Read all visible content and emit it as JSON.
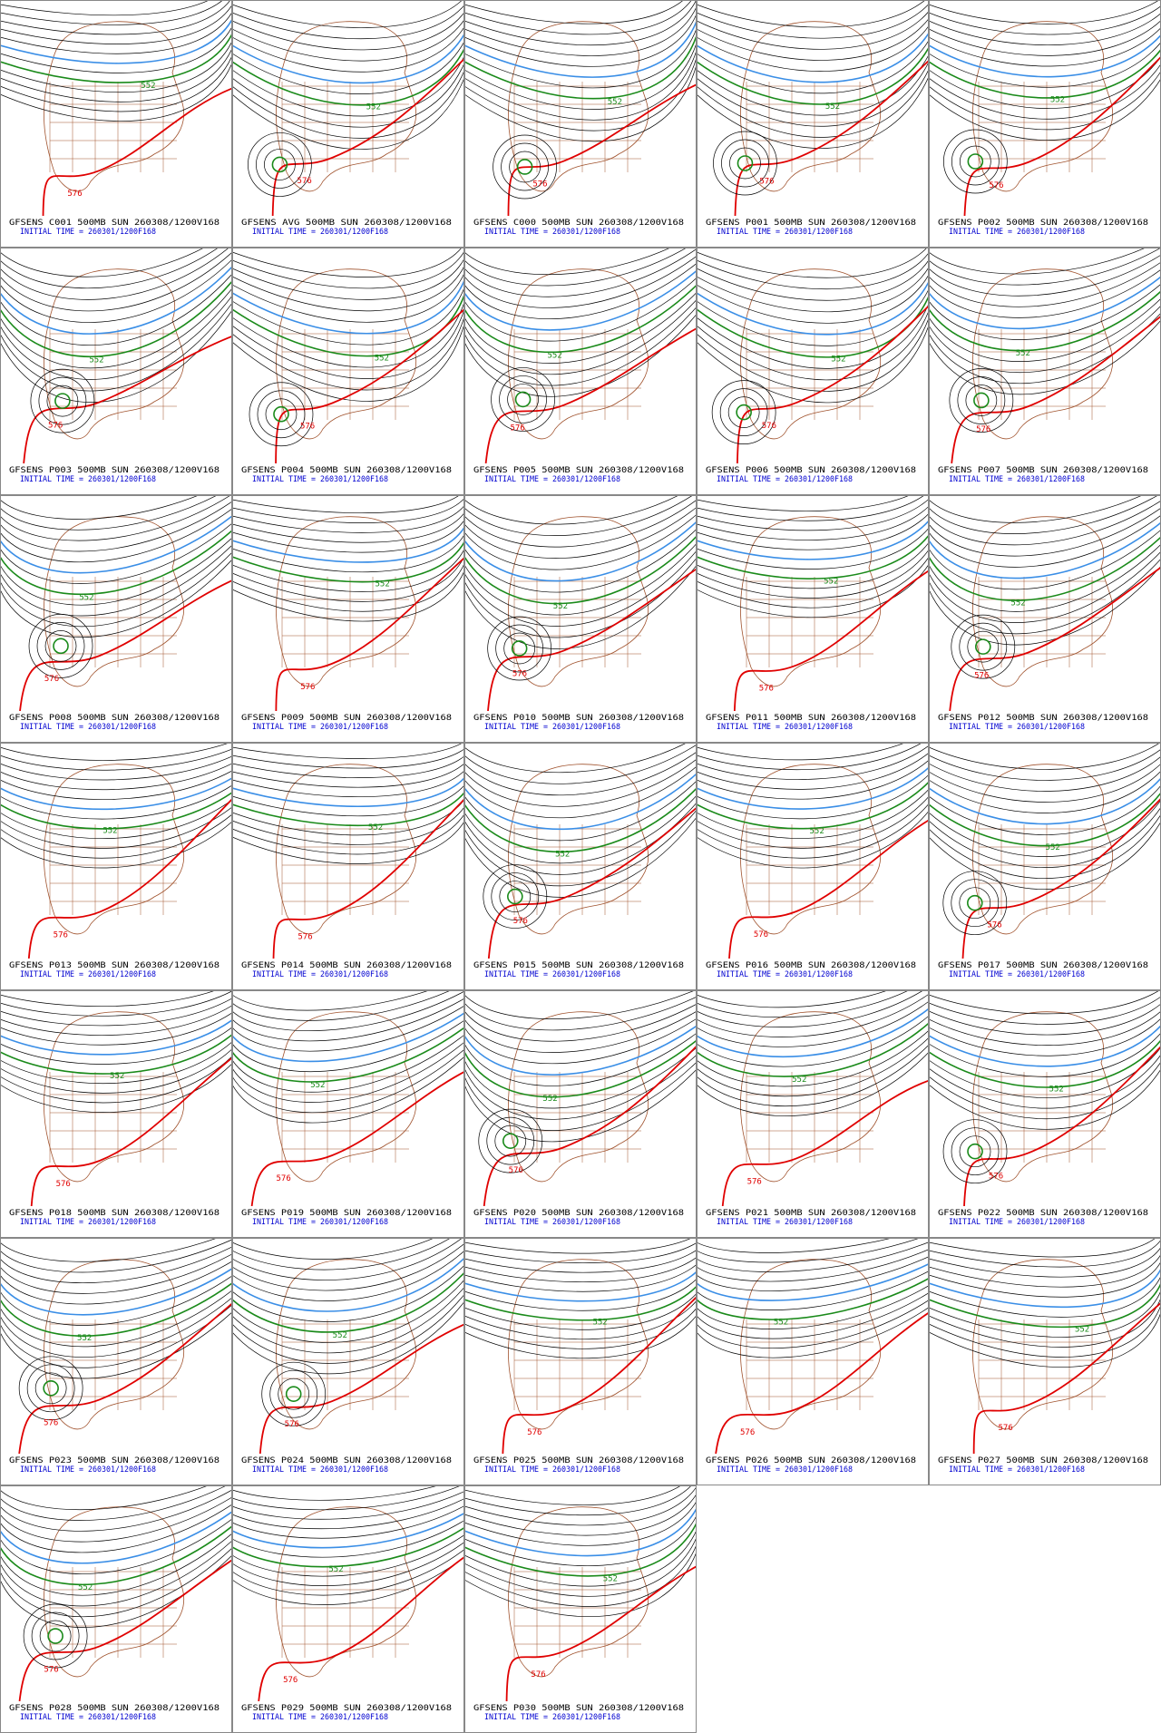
{
  "panels": [
    {
      "title": "GFSENS C001 500MB SUN 260308/1200V168",
      "init": "INITIAL TIME = 260301/1200F168",
      "labels": [
        "552",
        "576"
      ]
    },
    {
      "title": "GFSENS AVG 500MB SUN 260308/1200V168",
      "init": "INITIAL TIME = 260301/1200F168",
      "labels": [
        "552",
        "576"
      ]
    },
    {
      "title": "GFSENS C000 500MB SUN 260308/1200V168",
      "init": "INITIAL TIME = 260301/1200F168",
      "labels": [
        "552",
        "576"
      ]
    },
    {
      "title": "GFSENS P001 500MB SUN 260308/1200V168",
      "init": "INITIAL TIME = 260301/1200F168",
      "labels": [
        "552",
        "576"
      ]
    },
    {
      "title": "GFSENS P002 500MB SUN 260308/1200V168",
      "init": "INITIAL TIME = 260301/1200F168",
      "labels": [
        "552",
        "576"
      ]
    },
    {
      "title": "GFSENS P003 500MB SUN 260308/1200V168",
      "init": "INITIAL TIME = 260301/1200F168",
      "labels": [
        "552",
        "576"
      ]
    },
    {
      "title": "GFSENS P004 500MB SUN 260308/1200V168",
      "init": "INITIAL TIME = 260301/1200F168",
      "labels": [
        "552",
        "576"
      ]
    },
    {
      "title": "GFSENS P005 500MB SUN 260308/1200V168",
      "init": "INITIAL TIME = 260301/1200F168",
      "labels": [
        "552",
        "576"
      ]
    },
    {
      "title": "GFSENS P006 500MB SUN 260308/1200V168",
      "init": "INITIAL TIME = 260301/1200F168",
      "labels": [
        "552",
        "576"
      ]
    },
    {
      "title": "GFSENS P007 500MB SUN 260308/1200V168",
      "init": "INITIAL TIME = 260301/1200F168",
      "labels": [
        "552",
        "576"
      ]
    },
    {
      "title": "GFSENS P008 500MB SUN 260308/1200V168",
      "init": "INITIAL TIME = 260301/1200F168",
      "labels": [
        "552",
        "576"
      ]
    },
    {
      "title": "GFSENS P009 500MB SUN 260308/1200V168",
      "init": "INITIAL TIME = 260301/1200F168",
      "labels": [
        "552",
        "576"
      ]
    },
    {
      "title": "GFSENS P010 500MB SUN 260308/1200V168",
      "init": "INITIAL TIME = 260301/1200F168",
      "labels": [
        "552",
        "576"
      ]
    },
    {
      "title": "GFSENS P011 500MB SUN 260308/1200V168",
      "init": "INITIAL TIME = 260301/1200F168",
      "labels": [
        "552",
        "576"
      ]
    },
    {
      "title": "GFSENS P012 500MB SUN 260308/1200V168",
      "init": "INITIAL TIME = 260301/1200F168",
      "labels": [
        "552",
        "576"
      ]
    },
    {
      "title": "GFSENS P013 500MB SUN 260308/1200V168",
      "init": "INITIAL TIME = 260301/1200F168",
      "labels": [
        "552",
        "576"
      ]
    },
    {
      "title": "GFSENS P014 500MB SUN 260308/1200V168",
      "init": "INITIAL TIME = 260301/1200F168",
      "labels": [
        "552",
        "576"
      ]
    },
    {
      "title": "GFSENS P015 500MB SUN 260308/1200V168",
      "init": "INITIAL TIME = 260301/1200F168",
      "labels": [
        "552",
        "576"
      ]
    },
    {
      "title": "GFSENS P016 500MB SUN 260308/1200V168",
      "init": "INITIAL TIME = 260301/1200F168",
      "labels": [
        "552",
        "576"
      ]
    },
    {
      "title": "GFSENS P017 500MB SUN 260308/1200V168",
      "init": "INITIAL TIME = 260301/1200F168",
      "labels": [
        "552",
        "576"
      ]
    },
    {
      "title": "GFSENS P018 500MB SUN 260308/1200V168",
      "init": "INITIAL TIME = 260301/1200F168",
      "labels": [
        "552",
        "576"
      ]
    },
    {
      "title": "GFSENS P019 500MB SUN 260308/1200V168",
      "init": "INITIAL TIME = 260301/1200F168",
      "labels": [
        "552",
        "576"
      ]
    },
    {
      "title": "GFSENS P020 500MB SUN 260308/1200V168",
      "init": "INITIAL TIME = 260301/1200F168",
      "labels": [
        "552",
        "576"
      ]
    },
    {
      "title": "GFSENS P021 500MB SUN 260308/1200V168",
      "init": "INITIAL TIME = 260301/1200F168",
      "labels": [
        "552",
        "576"
      ]
    },
    {
      "title": "GFSENS P022 500MB SUN 260308/1200V168",
      "init": "INITIAL TIME = 260301/1200F168",
      "labels": [
        "552",
        "576"
      ]
    },
    {
      "title": "GFSENS P023 500MB SUN 260308/1200V168",
      "init": "INITIAL TIME = 260301/1200F168",
      "labels": [
        "552",
        "576"
      ]
    },
    {
      "title": "GFSENS P024 500MB SUN 260308/1200V168",
      "init": "INITIAL TIME = 260301/1200F168",
      "labels": [
        "552",
        "576"
      ]
    },
    {
      "title": "GFSENS P025 500MB SUN 260308/1200V168",
      "init": "INITIAL TIME = 260301/1200F168",
      "labels": [
        "552",
        "576"
      ]
    },
    {
      "title": "GFSENS P026 500MB SUN 260308/1200V168",
      "init": "INITIAL TIME = 260301/1200F168",
      "labels": [
        "552",
        "576"
      ]
    },
    {
      "title": "GFSENS P027 500MB SUN 260308/1200V168",
      "init": "INITIAL TIME = 260301/1200F168",
      "labels": [
        "552",
        "576"
      ]
    },
    {
      "title": "GFSENS P028 500MB SUN 260308/1200V168",
      "init": "INITIAL TIME = 260301/1200F168",
      "labels": [
        "552",
        "576"
      ]
    },
    {
      "title": "GFSENS P029 500MB SUN 260308/1200V168",
      "init": "INITIAL TIME = 260301/1200F168",
      "labels": [
        "552",
        "576"
      ]
    },
    {
      "title": "GFSENS P030 500MB SUN 260308/1200V168",
      "init": "INITIAL TIME = 260301/1200F168",
      "labels": [
        "552",
        "576"
      ]
    }
  ]
}
